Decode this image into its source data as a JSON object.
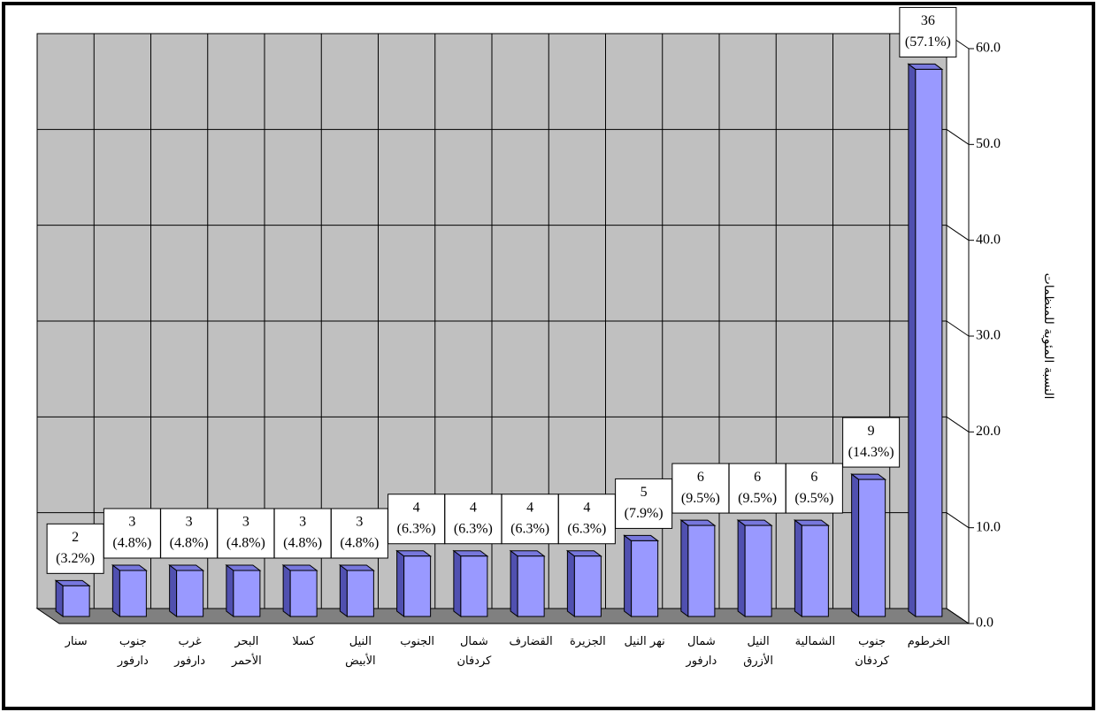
{
  "chart_data": {
    "type": "bar3d",
    "y_label": "النسبة المئوية للمنظمات",
    "categories": [
      "سنار",
      "جنوب دارفور",
      "غرب دارفور",
      "البحر الأحمر",
      "كسلا",
      "النيل الأبيض",
      "الجنوب",
      "شمال كردفان",
      "القضارف",
      "الجزيرة",
      "نهر النيل",
      "شمال دارفور",
      "النيل الأزرق",
      "الشمالية",
      "جنوب كردفان",
      "الخرطوم"
    ],
    "values": [
      3.2,
      4.8,
      4.8,
      4.8,
      4.8,
      4.8,
      6.3,
      6.3,
      6.3,
      6.3,
      7.9,
      9.5,
      9.5,
      9.5,
      14.3,
      57.1
    ],
    "value_labels": [
      "(3.2%)",
      "(4.8%)",
      "(4.8%)",
      "(4.8%)",
      "(4.8%)",
      "(4.8%)",
      "(6.3%)",
      "(6.3%)",
      "(6.3%)",
      "(6.3%)",
      "(7.9%)",
      "(9.5%)",
      "(9.5%)",
      "(9.5%)",
      "(14.3%)",
      "(57.1%)"
    ],
    "counts": [
      2,
      3,
      3,
      3,
      3,
      3,
      4,
      4,
      4,
      4,
      5,
      6,
      6,
      6,
      9,
      36
    ],
    "color": "#9999ff",
    "ylim": [
      0,
      60
    ],
    "yticks": [
      {
        "value": 0,
        "label": "0.0"
      },
      {
        "value": 10,
        "label": "10.0"
      },
      {
        "value": 20,
        "label": "20.0"
      },
      {
        "value": 30,
        "label": "30.0"
      },
      {
        "value": 40,
        "label": "40.0"
      },
      {
        "value": 50,
        "label": "50.0"
      },
      {
        "value": 60,
        "label": "60.0"
      }
    ],
    "grid": true
  }
}
